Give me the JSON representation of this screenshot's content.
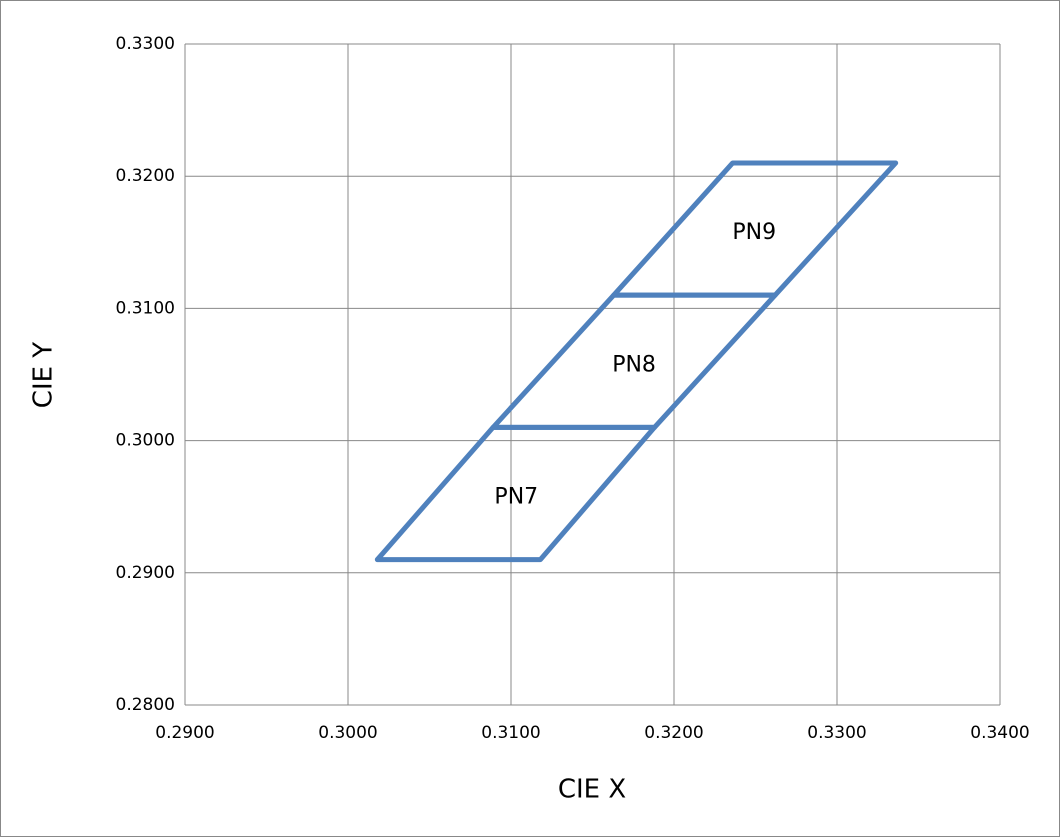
{
  "chart_data": {
    "type": "polygon",
    "x_label": "CIE X",
    "y_label": "CIE Y",
    "xlim": [
      0.29,
      0.34
    ],
    "ylim": [
      0.28,
      0.33
    ],
    "grid": true,
    "xticks": [
      {
        "value": 0.29,
        "label": "0.2900"
      },
      {
        "value": 0.3,
        "label": "0.3000"
      },
      {
        "value": 0.31,
        "label": "0.3100"
      },
      {
        "value": 0.32,
        "label": "0.3200"
      },
      {
        "value": 0.33,
        "label": "0.3300"
      },
      {
        "value": 0.34,
        "label": "0.3400"
      }
    ],
    "yticks": [
      {
        "value": 0.28,
        "label": "0.2800"
      },
      {
        "value": 0.29,
        "label": "0.2900"
      },
      {
        "value": 0.3,
        "label": "0.3000"
      },
      {
        "value": 0.31,
        "label": "0.3100"
      },
      {
        "value": 0.32,
        "label": "0.3200"
      },
      {
        "value": 0.33,
        "label": "0.3300"
      }
    ],
    "series": [
      {
        "name": "PN7",
        "color": "#4f81bd",
        "x": [
          0.3018,
          0.3118,
          0.3188,
          0.3089
        ],
        "y": [
          0.291,
          0.291,
          0.301,
          0.301
        ]
      },
      {
        "name": "PN8",
        "color": "#4f81bd",
        "x": [
          0.3089,
          0.3188,
          0.3262,
          0.3163
        ],
        "y": [
          0.301,
          0.301,
          0.311,
          0.311
        ]
      },
      {
        "name": "PN9",
        "color": "#4f81bd",
        "x": [
          0.3163,
          0.3262,
          0.3336,
          0.3236
        ],
        "y": [
          0.311,
          0.311,
          0.321,
          0.321
        ]
      }
    ]
  }
}
